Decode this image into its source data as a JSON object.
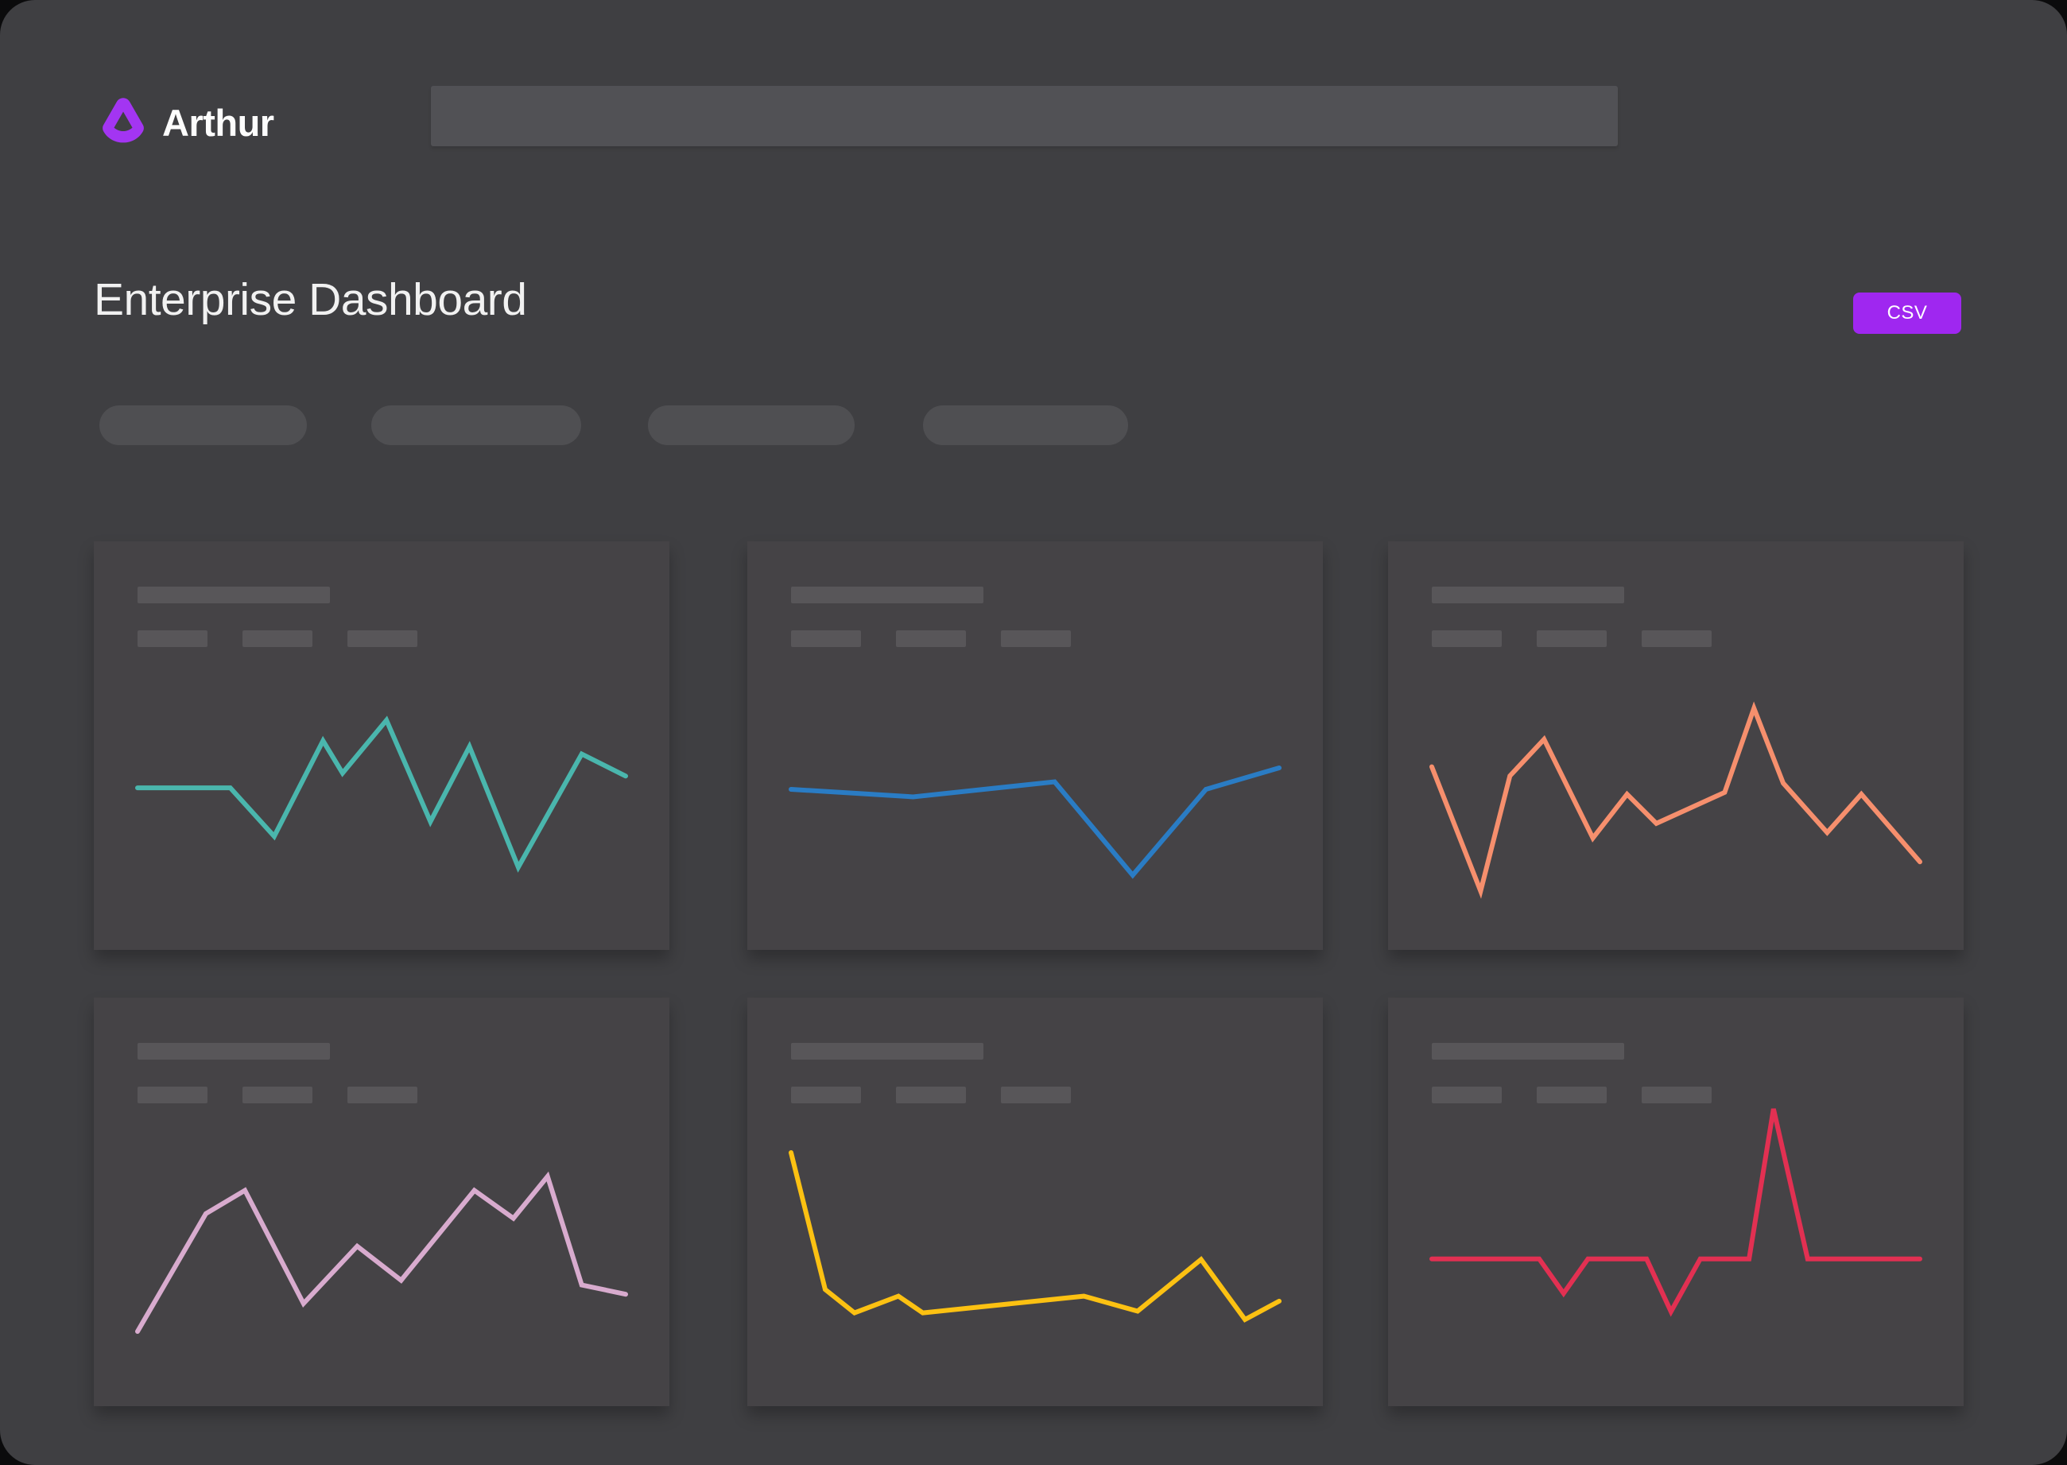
{
  "brand": {
    "name": "Arthur",
    "logo_icon": "arthur-logo-icon",
    "logo_color": "#a335f2"
  },
  "page": {
    "title": "Enterprise Dashboard",
    "export_button_label": "CSV"
  },
  "search": {
    "value": "",
    "placeholder": ""
  },
  "colors": {
    "background_outside": "#0b0b0c",
    "panel_background": "#3f3f42",
    "card_background": "#454346",
    "skeleton_bar": "#585659",
    "pill_background": "#4f4f52",
    "searchbar_background": "#515155",
    "accent_purple": "#9f27f0",
    "title_text": "#f1f1f1"
  },
  "chart_data": [
    {
      "type": "line",
      "name": "sparkline-teal",
      "color": "#4ab6ad",
      "x": [
        0,
        19,
        28,
        38,
        42,
        51,
        60,
        68,
        78,
        91,
        100
      ],
      "y": [
        46,
        46,
        79,
        14,
        36,
        0,
        69,
        18,
        100,
        23,
        38
      ],
      "note": "x and y are percents of the chart box; y measured from top"
    },
    {
      "type": "line",
      "name": "sparkline-blue",
      "color": "#2a7cc4",
      "x": [
        0,
        25,
        54,
        70,
        85,
        100
      ],
      "y": [
        20,
        27,
        13,
        100,
        20,
        0
      ]
    },
    {
      "type": "line",
      "name": "sparkline-orange",
      "color": "#f68f6d",
      "x": [
        0,
        10,
        16,
        23,
        33,
        40,
        46,
        60,
        66,
        72,
        81,
        88,
        100
      ],
      "y": [
        32,
        100,
        37,
        17,
        71,
        47,
        63,
        46,
        0,
        41,
        68,
        47,
        84
      ]
    },
    {
      "type": "line",
      "name": "sparkline-pink",
      "color": "#d8abce",
      "x": [
        0,
        14,
        22,
        34,
        45,
        54,
        69,
        77,
        84,
        91,
        100
      ],
      "y": [
        100,
        24,
        9,
        82,
        45,
        67,
        9,
        27,
        0,
        70,
        76
      ]
    },
    {
      "type": "line",
      "name": "sparkline-yellow",
      "color": "#fcc112",
      "x": [
        0,
        7,
        13,
        22,
        27,
        60,
        71,
        84,
        93,
        100
      ],
      "y": [
        0,
        82,
        96,
        86,
        96,
        86,
        95,
        64,
        100,
        89
      ]
    },
    {
      "type": "line",
      "name": "sparkline-red",
      "color": "#e23052",
      "x": [
        0,
        22,
        27,
        32,
        44,
        49,
        55,
        65,
        70,
        77,
        100
      ],
      "y": [
        74,
        74,
        91,
        74,
        74,
        100,
        74,
        74,
        0,
        74,
        74
      ]
    }
  ]
}
